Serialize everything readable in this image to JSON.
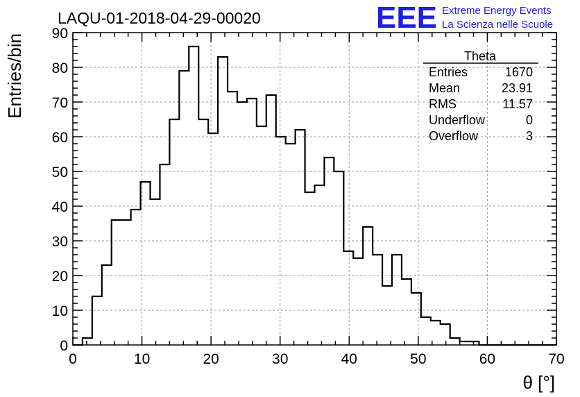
{
  "logo": {
    "mark": "EEE",
    "line1": "Extreme Energy Events",
    "line2": "La Scienza nelle Scuole",
    "color": "#1e1ee6"
  },
  "stats": {
    "title": "Theta",
    "rows": [
      {
        "label": "Entries",
        "value": "1670"
      },
      {
        "label": "Mean",
        "value": "23.91"
      },
      {
        "label": "RMS",
        "value": "11.57"
      },
      {
        "label": "Underflow",
        "value": "0"
      },
      {
        "label": "Overflow",
        "value": "3"
      }
    ]
  },
  "chart_data": {
    "type": "histogram",
    "title": "LAQU-01-2018-04-29-00020",
    "xlabel": "θ [°]",
    "ylabel": "Entries/bin",
    "xlim": [
      0,
      70
    ],
    "ylim": [
      0,
      90
    ],
    "grid": true,
    "bin_width": 1.4,
    "bin_start": 0,
    "values": [
      0,
      2,
      14,
      23,
      36,
      36,
      39,
      47,
      42,
      52,
      65,
      79,
      86,
      65,
      61,
      83,
      73,
      70,
      71,
      63,
      72,
      60,
      58,
      62,
      44,
      46,
      54,
      50,
      27,
      25,
      34,
      26,
      17,
      26,
      19,
      15,
      8,
      7,
      6,
      2,
      1,
      1,
      0,
      0,
      0,
      0,
      0,
      0,
      0,
      0
    ],
    "x_ticks": [
      0,
      10,
      20,
      30,
      40,
      50,
      60,
      70
    ],
    "y_ticks": [
      0,
      10,
      20,
      30,
      40,
      50,
      60,
      70,
      80,
      90
    ]
  }
}
